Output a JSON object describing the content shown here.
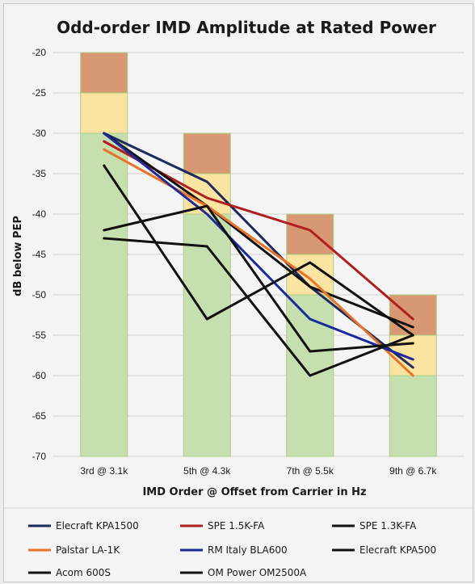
{
  "chart_data": {
    "type": "line",
    "title": "Odd-order IMD Amplitude at Rated Power",
    "xlabel": "IMD Order @ Offset from Carrier in Hz",
    "ylabel": "dB below PEP",
    "ylim": [
      -70,
      -20
    ],
    "yticks": [
      -20,
      -25,
      -30,
      -35,
      -40,
      -45,
      -50,
      -55,
      -60,
      -65,
      -70
    ],
    "categories": [
      "3rd @ 3.1k",
      "5th @ 4.3k",
      "7th @ 5.5k",
      "9th @ 6.7k"
    ],
    "grid": true,
    "legend_position": "bottom",
    "bands": [
      {
        "limits": [
          -30,
          -25,
          -20
        ]
      },
      {
        "limits": [
          -40,
          -35,
          -30
        ]
      },
      {
        "limits": [
          -50,
          -45,
          -40
        ]
      },
      {
        "limits": [
          -60,
          -55,
          -50
        ]
      }
    ],
    "band_colors": {
      "green": "#c6dfae",
      "yellow": "#fbe3a2",
      "red": "#d99874",
      "edge": "#a9cf82"
    },
    "series": [
      {
        "name": "Elecraft KPA1500",
        "color": "#1f2a5c",
        "values": [
          -30,
          -36,
          -49,
          -59
        ]
      },
      {
        "name": "SPE 1.5K-FA",
        "color": "#b01f1f",
        "values": [
          -31,
          -38,
          -42,
          -53
        ]
      },
      {
        "name": "SPE 1.3K-FA",
        "color": "#111111",
        "values": [
          -30,
          -39,
          -49,
          -54
        ]
      },
      {
        "name": "Palstar LA-1K",
        "color": "#e8742a",
        "values": [
          -32,
          -39,
          -48,
          -60
        ]
      },
      {
        "name": "RM Italy BLA600",
        "color": "#1b2a9a",
        "values": [
          -30,
          -40,
          -53,
          -58
        ]
      },
      {
        "name": "Elecraft KPA500",
        "color": "#111111",
        "values": [
          -42,
          -39,
          -57,
          -56
        ]
      },
      {
        "name": "Acom 600S",
        "color": "#111111",
        "values": [
          -34,
          -53,
          -46,
          -55
        ]
      },
      {
        "name": "OM Power OM2500A",
        "color": "#111111",
        "values": [
          -43,
          -44,
          -60,
          -55
        ]
      }
    ]
  }
}
